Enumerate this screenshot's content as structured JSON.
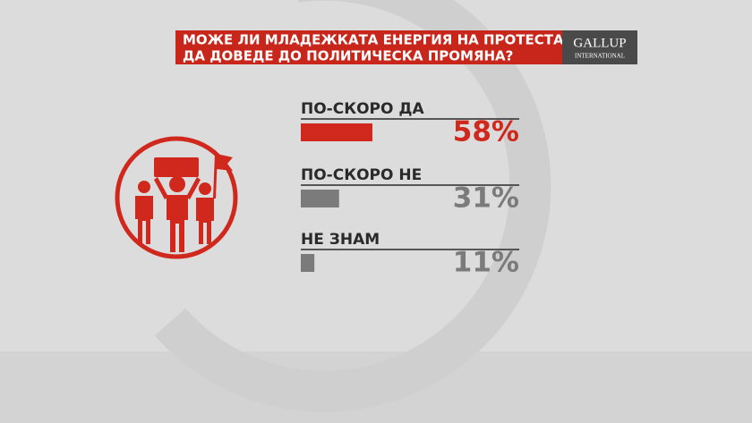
{
  "chart_data": {
    "type": "bar",
    "orientation": "horizontal",
    "title": [
      "МОЖЕ ЛИ МЛАДЕЖКАТА ЕНЕРГИЯ НА ПРОТЕСТА",
      "ДА ДОВЕДЕ ДО ПОЛИТИЧЕСКА ПРОМЯНА?"
    ],
    "logo": [
      "GALLUP",
      "INTERNATIONAL"
    ],
    "categories": [
      "ПО-СКОРО ДА",
      "ПО-СКОРО НЕ",
      "НЕ ЗНАМ"
    ],
    "values": [
      58,
      31,
      11
    ],
    "value_labels": [
      "58%",
      "31%",
      "11%"
    ],
    "colors": [
      "#d0281c",
      "#7b7b7b",
      "#7b7b7b"
    ]
  }
}
